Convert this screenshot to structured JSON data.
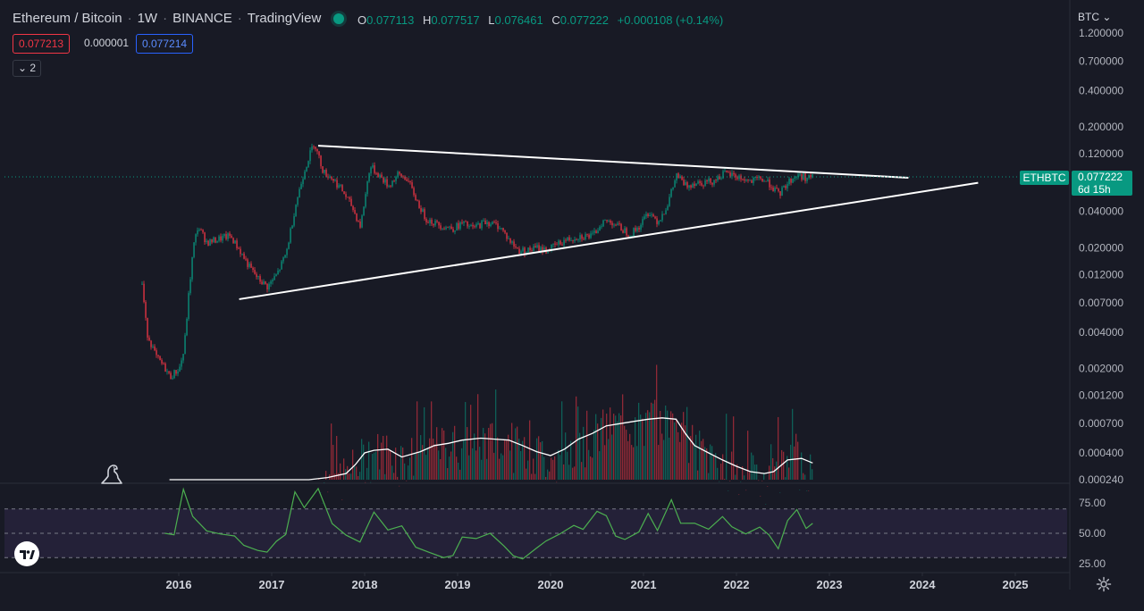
{
  "header": {
    "symbol": "Ethereum / Bitcoin",
    "interval": "1W",
    "exchange": "BINANCE",
    "source": "TradingView",
    "o_key": "O",
    "o_val": "0.077113",
    "h_key": "H",
    "h_val": "0.077517",
    "l_key": "L",
    "l_val": "0.076461",
    "c_key": "C",
    "c_val": "0.077222",
    "change": "+0.000108 (+0.14%)"
  },
  "quote": {
    "bid": "0.077213",
    "spread": "0.000001",
    "ask": "0.077214"
  },
  "collapse_label": "2",
  "currency_label": "BTC",
  "last": {
    "ticker": "ETHBTC",
    "price": "0.077222",
    "countdown": "6d 15h"
  },
  "colors": {
    "background": "#181a25",
    "up": "#089981",
    "down": "#f23645",
    "rsi": "#4caf50",
    "trendline": "#ffffff"
  },
  "icons": {
    "status": "live-dot-icon",
    "logo": "tradingview-logo-icon",
    "settings": "gear-icon",
    "dino": "dinosaur-icon"
  },
  "chart_data": {
    "type": "candlestick",
    "scale": "log",
    "x_ticks": [
      "2016",
      "2017",
      "2018",
      "2019",
      "2020",
      "2021",
      "2022",
      "2023",
      "2024",
      "2025"
    ],
    "y_ticks": [
      "1.200000",
      "0.700000",
      "0.400000",
      "0.200000",
      "0.120000",
      "0.040000",
      "0.020000",
      "0.012000",
      "0.007000",
      "0.004000",
      "0.002000",
      "0.001200",
      "0.000700",
      "0.000400",
      "0.000240"
    ],
    "price_path": [
      [
        2015.6,
        0.01
      ],
      [
        2015.65,
        0.004
      ],
      [
        2015.75,
        0.0025
      ],
      [
        2015.85,
        0.002
      ],
      [
        2015.9,
        0.0017
      ],
      [
        2016.0,
        0.002
      ],
      [
        2016.05,
        0.0028
      ],
      [
        2016.1,
        0.008
      ],
      [
        2016.15,
        0.02
      ],
      [
        2016.2,
        0.03
      ],
      [
        2016.3,
        0.022
      ],
      [
        2016.45,
        0.024
      ],
      [
        2016.55,
        0.025
      ],
      [
        2016.65,
        0.019
      ],
      [
        2016.75,
        0.014
      ],
      [
        2016.85,
        0.011
      ],
      [
        2016.95,
        0.0095
      ],
      [
        2017.05,
        0.012
      ],
      [
        2017.15,
        0.018
      ],
      [
        2017.25,
        0.045
      ],
      [
        2017.35,
        0.09
      ],
      [
        2017.45,
        0.15
      ],
      [
        2017.55,
        0.085
      ],
      [
        2017.65,
        0.075
      ],
      [
        2017.75,
        0.06
      ],
      [
        2017.85,
        0.045
      ],
      [
        2017.95,
        0.03
      ],
      [
        2018.05,
        0.095
      ],
      [
        2018.15,
        0.08
      ],
      [
        2018.25,
        0.065
      ],
      [
        2018.35,
        0.08
      ],
      [
        2018.45,
        0.075
      ],
      [
        2018.55,
        0.05
      ],
      [
        2018.65,
        0.035
      ],
      [
        2018.75,
        0.032
      ],
      [
        2018.85,
        0.03
      ],
      [
        2018.95,
        0.029
      ],
      [
        2019.05,
        0.032
      ],
      [
        2019.15,
        0.029
      ],
      [
        2019.3,
        0.033
      ],
      [
        2019.45,
        0.03
      ],
      [
        2019.55,
        0.023
      ],
      [
        2019.65,
        0.019
      ],
      [
        2019.75,
        0.019
      ],
      [
        2019.85,
        0.02
      ],
      [
        2019.95,
        0.019
      ],
      [
        2020.05,
        0.021
      ],
      [
        2020.15,
        0.023
      ],
      [
        2020.3,
        0.025
      ],
      [
        2020.45,
        0.025
      ],
      [
        2020.55,
        0.033
      ],
      [
        2020.65,
        0.033
      ],
      [
        2020.75,
        0.029
      ],
      [
        2020.85,
        0.026
      ],
      [
        2020.95,
        0.03
      ],
      [
        2021.05,
        0.04
      ],
      [
        2021.15,
        0.033
      ],
      [
        2021.25,
        0.045
      ],
      [
        2021.35,
        0.08
      ],
      [
        2021.45,
        0.065
      ],
      [
        2021.55,
        0.07
      ],
      [
        2021.65,
        0.07
      ],
      [
        2021.75,
        0.072
      ],
      [
        2021.85,
        0.082
      ],
      [
        2021.95,
        0.08
      ],
      [
        2022.05,
        0.075
      ],
      [
        2022.15,
        0.07
      ],
      [
        2022.25,
        0.075
      ],
      [
        2022.35,
        0.068
      ],
      [
        2022.45,
        0.055
      ],
      [
        2022.55,
        0.07
      ],
      [
        2022.65,
        0.08
      ],
      [
        2022.75,
        0.076
      ],
      [
        2022.82,
        0.0772
      ]
    ],
    "trendlines": [
      {
        "x1": 2017.5,
        "y1": 0.14,
        "x2": 2023.85,
        "y2": 0.076
      },
      {
        "x1": 2016.65,
        "y1": 0.0075,
        "x2": 2024.6,
        "y2": 0.069
      }
    ],
    "rsi": {
      "y_ticks": [
        "75.00",
        "50.00",
        "25.00"
      ],
      "upper": 70,
      "middle": 50,
      "lower": 30,
      "path": [
        [
          2015.85,
          50
        ],
        [
          2015.95,
          49
        ],
        [
          2016.05,
          85
        ],
        [
          2016.15,
          65
        ],
        [
          2016.3,
          52
        ],
        [
          2016.45,
          50
        ],
        [
          2016.6,
          48
        ],
        [
          2016.7,
          40
        ],
        [
          2016.85,
          35
        ],
        [
          2016.95,
          34
        ],
        [
          2017.05,
          42
        ],
        [
          2017.15,
          48
        ],
        [
          2017.25,
          85
        ],
        [
          2017.35,
          72
        ],
        [
          2017.5,
          86
        ],
        [
          2017.65,
          58
        ],
        [
          2017.8,
          48
        ],
        [
          2017.95,
          44
        ],
        [
          2018.1,
          66
        ],
        [
          2018.25,
          52
        ],
        [
          2018.4,
          57
        ],
        [
          2018.55,
          40
        ],
        [
          2018.7,
          33
        ],
        [
          2018.85,
          30
        ],
        [
          2018.95,
          33
        ],
        [
          2019.05,
          47
        ],
        [
          2019.2,
          46
        ],
        [
          2019.35,
          50
        ],
        [
          2019.5,
          38
        ],
        [
          2019.6,
          32
        ],
        [
          2019.7,
          28
        ],
        [
          2019.85,
          37
        ],
        [
          2019.95,
          43
        ],
        [
          2020.1,
          50
        ],
        [
          2020.25,
          57
        ],
        [
          2020.35,
          52
        ],
        [
          2020.5,
          68
        ],
        [
          2020.6,
          63
        ],
        [
          2020.7,
          48
        ],
        [
          2020.8,
          44
        ],
        [
          2020.95,
          52
        ],
        [
          2021.05,
          66
        ],
        [
          2021.15,
          52
        ],
        [
          2021.3,
          78
        ],
        [
          2021.4,
          57
        ],
        [
          2021.55,
          59
        ],
        [
          2021.7,
          52
        ],
        [
          2021.85,
          63
        ],
        [
          2021.95,
          56
        ],
        [
          2022.1,
          50
        ],
        [
          2022.25,
          55
        ],
        [
          2022.35,
          50
        ],
        [
          2022.45,
          36
        ],
        [
          2022.55,
          60
        ],
        [
          2022.65,
          68
        ],
        [
          2022.75,
          55
        ],
        [
          2022.82,
          58
        ]
      ]
    },
    "volume_ma_path": [
      [
        2015.9,
        0.00024
      ],
      [
        2016.5,
        0.00024
      ],
      [
        2017.0,
        0.00024
      ],
      [
        2017.4,
        0.00024
      ],
      [
        2017.6,
        0.00025
      ],
      [
        2017.8,
        0.00027
      ],
      [
        2017.9,
        0.00032
      ],
      [
        2018.0,
        0.0004
      ],
      [
        2018.1,
        0.00042
      ],
      [
        2018.25,
        0.00043
      ],
      [
        2018.4,
        0.00037
      ],
      [
        2018.6,
        0.00041
      ],
      [
        2018.75,
        0.00046
      ],
      [
        2018.9,
        0.00048
      ],
      [
        2019.05,
        0.00051
      ],
      [
        2019.25,
        0.00053
      ],
      [
        2019.4,
        0.00052
      ],
      [
        2019.55,
        0.00051
      ],
      [
        2019.7,
        0.00046
      ],
      [
        2019.85,
        0.00041
      ],
      [
        2020.0,
        0.00038
      ],
      [
        2020.15,
        0.00043
      ],
      [
        2020.3,
        0.00052
      ],
      [
        2020.45,
        0.00058
      ],
      [
        2020.6,
        0.00067
      ],
      [
        2020.75,
        0.0007
      ],
      [
        2020.9,
        0.00073
      ],
      [
        2021.05,
        0.00076
      ],
      [
        2021.2,
        0.00078
      ],
      [
        2021.35,
        0.00076
      ],
      [
        2021.45,
        0.00058
      ],
      [
        2021.55,
        0.00046
      ],
      [
        2021.7,
        0.0004
      ],
      [
        2021.85,
        0.00035
      ],
      [
        2022.0,
        0.00031
      ],
      [
        2022.15,
        0.00028
      ],
      [
        2022.3,
        0.00027
      ],
      [
        2022.4,
        0.00028
      ],
      [
        2022.55,
        0.00035
      ],
      [
        2022.7,
        0.00036
      ],
      [
        2022.82,
        0.00033
      ]
    ]
  }
}
